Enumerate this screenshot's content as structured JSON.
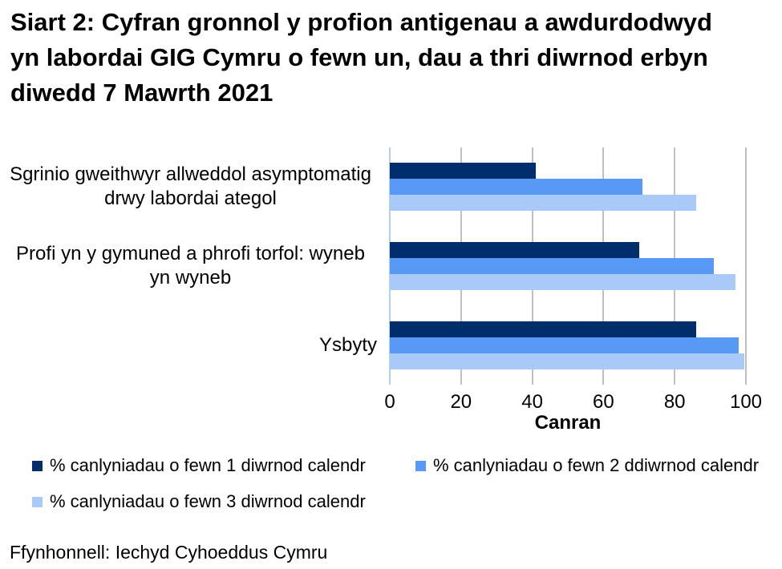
{
  "title": "Siart 2: Cyfran gronnol y profion antigenau a awdurdodwyd yn labordai GIG Cymru o fewn un, dau a thri diwrnod erbyn diwedd 7 Mawrth 2021",
  "source": "Ffynhonnell: Iechyd Cyhoeddus Cymru",
  "chart_data": {
    "type": "bar",
    "orientation": "horizontal",
    "title": "Siart 2: Cyfran gronnol y profion antigenau a awdurdodwyd yn labordai GIG Cymru o fewn un, dau a thri diwrnod erbyn diwedd 7 Mawrth 2021",
    "categories": [
      "Sgrinio gweithwyr allweddol asymptomatig drwy labordai ategol",
      "Profi yn y gymuned a phrofi torfol: wyneb yn wyneb",
      "Ysbyty"
    ],
    "series": [
      {
        "name": "% canlyniadau o fewn 1 diwrnod calendr",
        "color": "#002d6b",
        "values": [
          41,
          70,
          86
        ]
      },
      {
        "name": "% canlyniadau o fewn 2 ddiwrnod calendr",
        "color": "#569af5",
        "values": [
          71,
          91,
          98
        ]
      },
      {
        "name": "% canlyniadau o fewn 3 diwrnod calendr",
        "color": "#a9c9f8",
        "values": [
          86,
          97,
          99.5
        ]
      }
    ],
    "xlabel": "Canran",
    "xlim": [
      0,
      100
    ],
    "xticks": [
      0,
      20,
      40,
      60,
      80,
      100
    ],
    "grid": "vertical",
    "legend_position": "bottom",
    "gridline_color": "#bfbfbf",
    "zero_line_color": "#b3d2f0"
  }
}
